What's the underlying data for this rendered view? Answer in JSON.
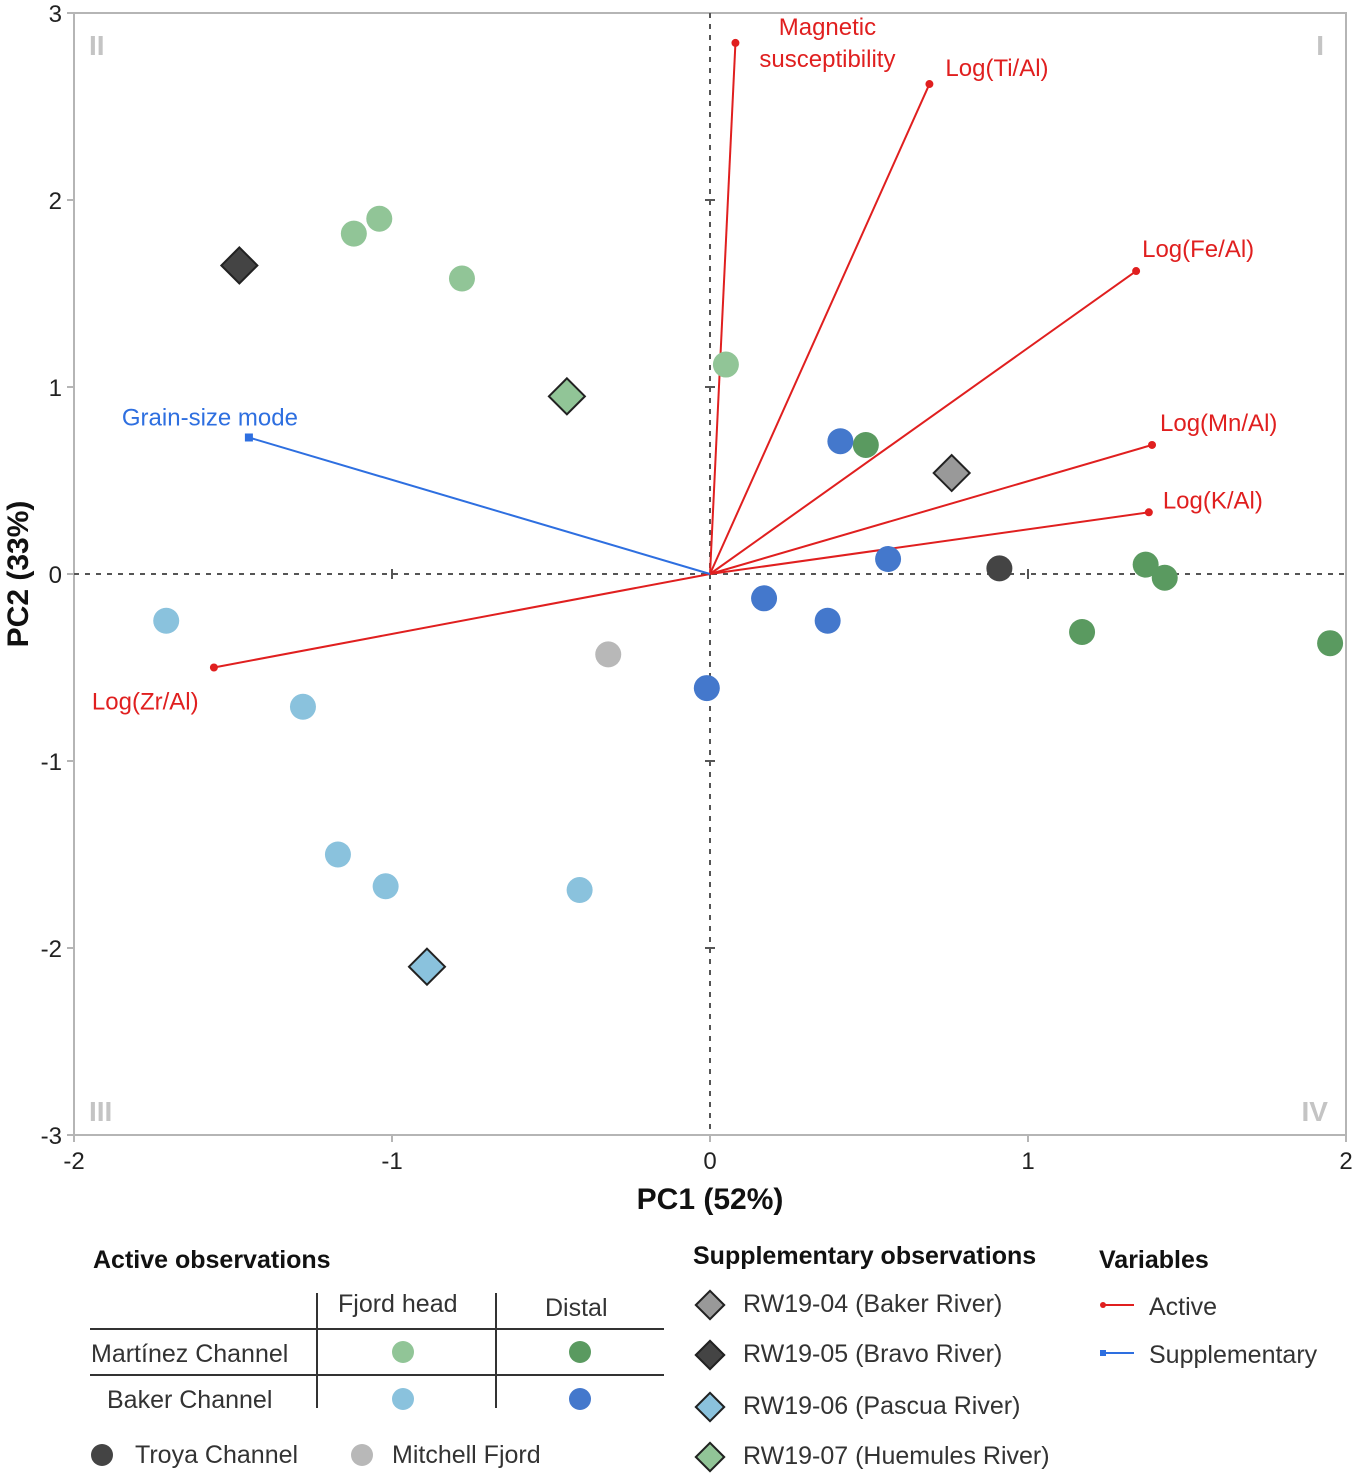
{
  "chart_data": {
    "type": "scatter",
    "xlabel": "PC1 (52%)",
    "ylabel": "PC2 (33%)",
    "xlim": [
      -2,
      2
    ],
    "ylim": [
      -3,
      3
    ],
    "xticks": [
      "-2",
      "-1",
      "0",
      "1",
      "2"
    ],
    "yticks": [
      "-3",
      "-2",
      "-1",
      "0",
      "1",
      "2",
      "3"
    ],
    "quadrants": [
      "I",
      "II",
      "III",
      "IV"
    ],
    "vectors": [
      {
        "name": "Magnetic susceptibility",
        "label": [
          "Magnetic",
          "susceptibility"
        ],
        "type": "active",
        "x": 0.08,
        "y": 2.84
      },
      {
        "name": "Log(Ti/Al)",
        "label": [
          "Log(Ti/Al)"
        ],
        "type": "active",
        "x": 0.69,
        "y": 2.62
      },
      {
        "name": "Log(Fe/Al)",
        "label": [
          "Log(Fe/Al)"
        ],
        "type": "active",
        "x": 1.34,
        "y": 1.62
      },
      {
        "name": "Log(Mn/Al)",
        "label": [
          "Log(Mn/Al)"
        ],
        "type": "active",
        "x": 1.39,
        "y": 0.69
      },
      {
        "name": "Log(K/Al)",
        "label": [
          "Log(K/Al)"
        ],
        "type": "active",
        "x": 1.38,
        "y": 0.33
      },
      {
        "name": "Log(Zr/Al)",
        "label": [
          "Log(Zr/Al)"
        ],
        "type": "active",
        "x": -1.56,
        "y": -0.5
      },
      {
        "name": "Grain-size mode",
        "label": [
          "Grain-size mode"
        ],
        "type": "supplementary",
        "x": -1.45,
        "y": 0.73
      }
    ],
    "series": [
      {
        "name": "Martínez Channel – Fjord head",
        "color": "#91c597",
        "marker": "circle",
        "points": [
          [
            -1.12,
            1.82
          ],
          [
            -1.04,
            1.9
          ],
          [
            -0.78,
            1.58
          ],
          [
            0.05,
            1.12
          ]
        ]
      },
      {
        "name": "Martínez Channel – Distal",
        "color": "#5a9a60",
        "marker": "circle",
        "points": [
          [
            0.49,
            0.69
          ],
          [
            1.37,
            0.05
          ],
          [
            1.43,
            -0.02
          ],
          [
            1.17,
            -0.31
          ],
          [
            1.95,
            -0.37
          ]
        ]
      },
      {
        "name": "Baker Channel – Fjord head",
        "color": "#8ac2dd",
        "marker": "circle",
        "points": [
          [
            -1.71,
            -0.25
          ],
          [
            -1.28,
            -0.71
          ],
          [
            -1.17,
            -1.5
          ],
          [
            -1.02,
            -1.67
          ],
          [
            -0.41,
            -1.69
          ]
        ]
      },
      {
        "name": "Baker Channel – Distal",
        "color": "#4478cc",
        "marker": "circle",
        "points": [
          [
            0.41,
            0.71
          ],
          [
            0.56,
            0.08
          ],
          [
            0.17,
            -0.13
          ],
          [
            0.37,
            -0.25
          ],
          [
            -0.01,
            -0.61
          ]
        ]
      },
      {
        "name": "Troya Channel",
        "color": "#444444",
        "marker": "circle",
        "points": [
          [
            0.91,
            0.03
          ]
        ]
      },
      {
        "name": "Mitchell Fjord",
        "color": "#b8b8b8",
        "marker": "circle",
        "points": [
          [
            -0.32,
            -0.43
          ]
        ]
      },
      {
        "name": "RW19-04 (Baker River)",
        "color": "#999999",
        "marker": "diamond",
        "points": [
          [
            0.76,
            0.54
          ]
        ]
      },
      {
        "name": "RW19-05 (Bravo River)",
        "color": "#444444",
        "marker": "diamond",
        "points": [
          [
            -1.48,
            1.65
          ]
        ]
      },
      {
        "name": "RW19-06 (Pascua River)",
        "color": "#8ac2dd",
        "marker": "diamond",
        "points": [
          [
            -0.89,
            -2.1
          ]
        ]
      },
      {
        "name": "RW19-07 (Huemules River)",
        "color": "#91c597",
        "marker": "diamond",
        "points": [
          [
            -0.45,
            0.95
          ]
        ]
      }
    ]
  },
  "legend": {
    "active_title": "Active observations",
    "col_fjord_head": "Fjord head",
    "col_distal": "Distal",
    "row_martinez": "Martínez Channel",
    "row_baker": "Baker Channel",
    "troya": "Troya Channel",
    "mitchell": "Mitchell Fjord",
    "supp_title": "Supplementary observations",
    "supp": [
      "RW19-04 (Baker River)",
      "RW19-05 (Bravo River)",
      "RW19-06 (Pascua River)",
      "RW19-07 (Huemules River)"
    ],
    "vars_title": "Variables",
    "var_active": "Active",
    "var_supp": "Supplementary"
  },
  "colors": {
    "active": "#e01f1f",
    "supplementary": "#2e6fe0",
    "martinez_head": "#91c597",
    "martinez_distal": "#5a9a60",
    "baker_head": "#8ac2dd",
    "baker_distal": "#4478cc",
    "troya": "#444444",
    "mitchell": "#b8b8b8",
    "rw04": "#999999",
    "rw05": "#444444",
    "rw06": "#8ac2dd",
    "rw07": "#91c597"
  }
}
